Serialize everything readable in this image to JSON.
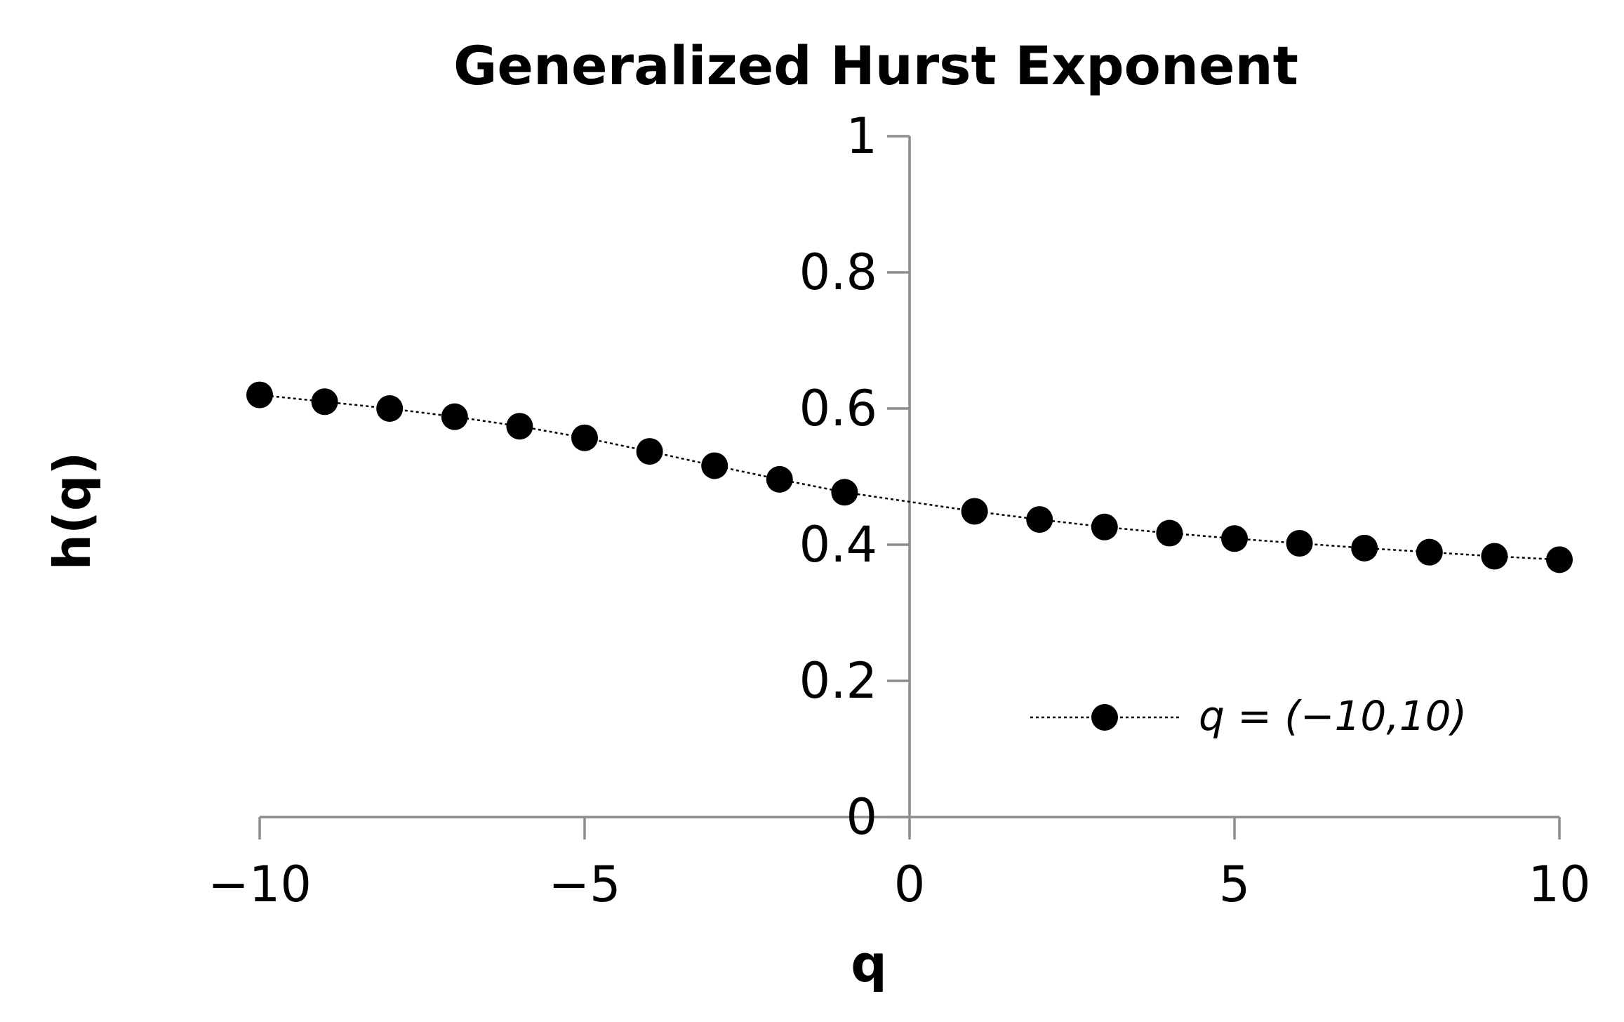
{
  "chart_data": {
    "type": "scatter",
    "title": "Generalized Hurst Exponent",
    "xlabel": "q",
    "ylabel": "h(q)",
    "xlim": [
      -10,
      10
    ],
    "ylim": [
      0,
      1
    ],
    "x_ticks": [
      {
        "value": -10,
        "label": "−10"
      },
      {
        "value": -5,
        "label": "−5"
      },
      {
        "value": 0,
        "label": "0"
      },
      {
        "value": 5,
        "label": "5"
      },
      {
        "value": 10,
        "label": "10"
      }
    ],
    "y_ticks": [
      {
        "value": 0,
        "label": "0"
      },
      {
        "value": 0.2,
        "label": "0.2"
      },
      {
        "value": 0.4,
        "label": "0.4"
      },
      {
        "value": 0.6,
        "label": "0.6"
      },
      {
        "value": 0.8,
        "label": "0.8"
      },
      {
        "value": 1,
        "label": "1"
      }
    ],
    "grid": false,
    "legend": "bottom-right",
    "colors": {
      "series": "#000000",
      "axis": "#8c8c8c"
    },
    "series": [
      {
        "name": "q = (−10,10)",
        "marker": "circle",
        "line": "dotted",
        "x": [
          -10,
          -9,
          -8,
          -7,
          -6,
          -5,
          -4,
          -3,
          -2,
          -1,
          1,
          2,
          3,
          4,
          5,
          6,
          7,
          8,
          9,
          10
        ],
        "y": [
          0.62,
          0.61,
          0.6,
          0.588,
          0.574,
          0.557,
          0.537,
          0.516,
          0.496,
          0.477,
          0.449,
          0.437,
          0.426,
          0.417,
          0.409,
          0.402,
          0.395,
          0.389,
          0.383,
          0.378
        ]
      }
    ]
  }
}
